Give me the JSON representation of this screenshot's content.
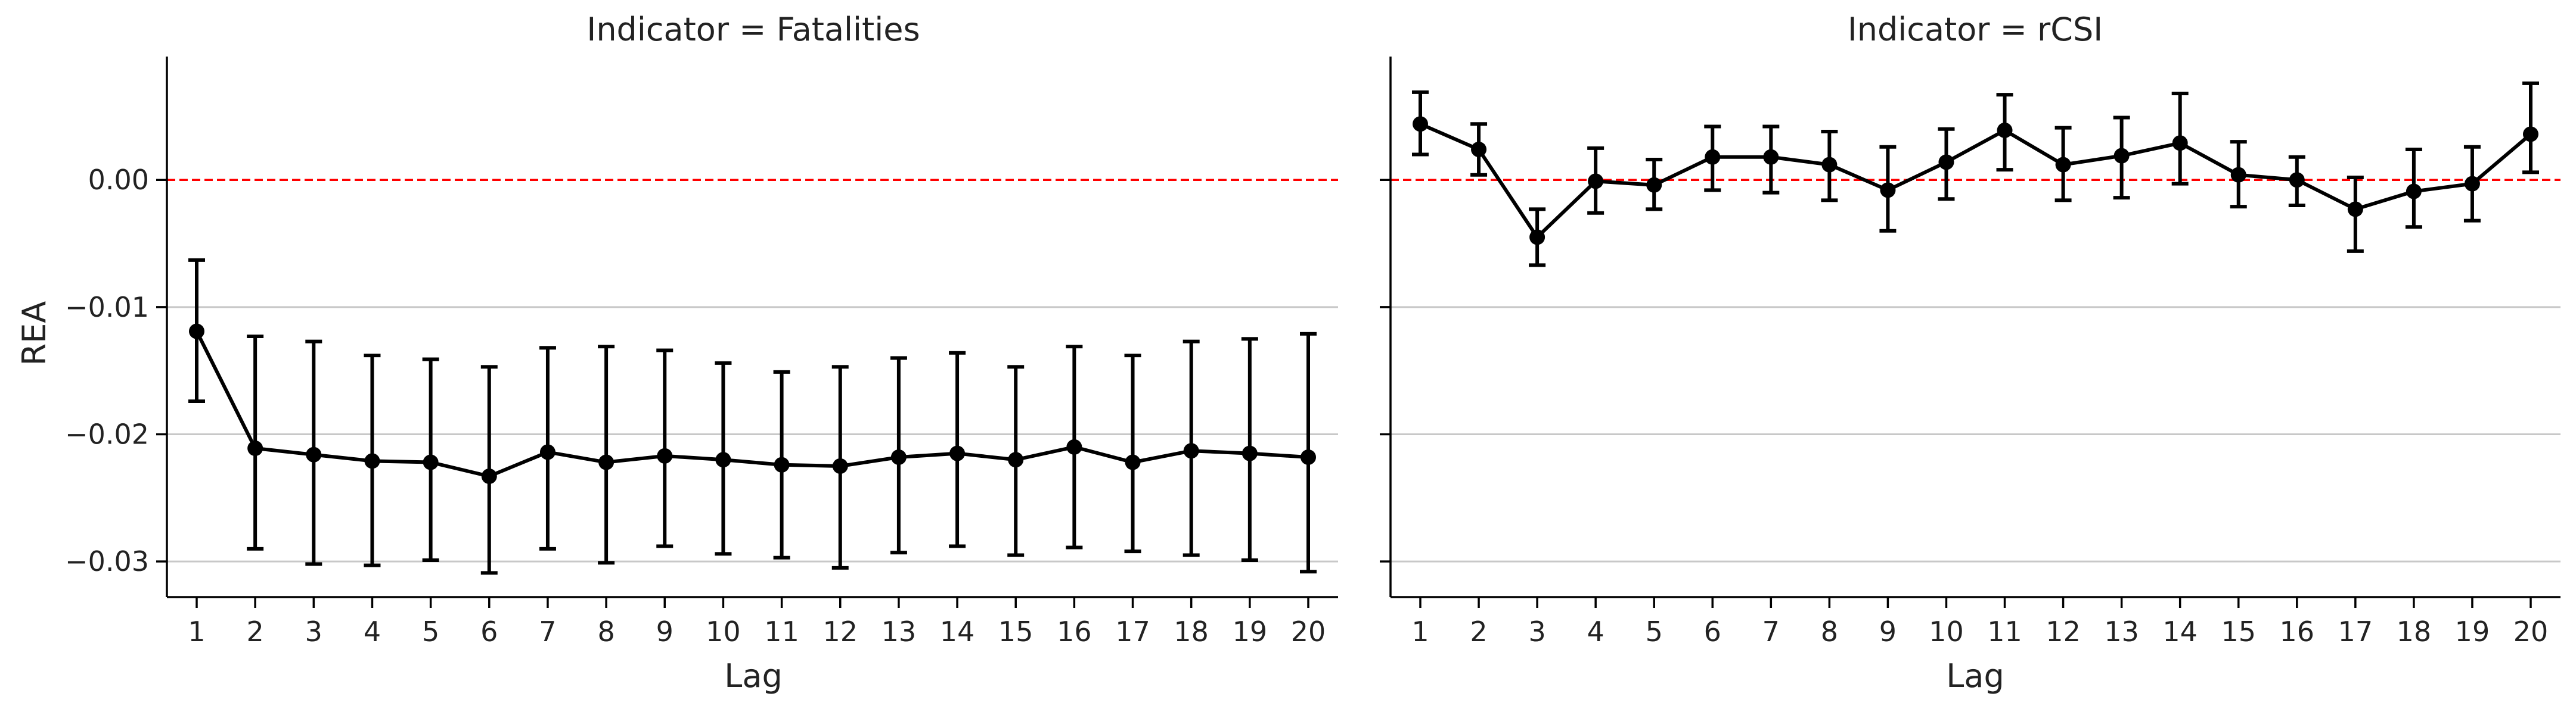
{
  "figure": {
    "ylabel": "REA",
    "y_ticks": [
      -0.03,
      -0.02,
      -0.01,
      0.0
    ],
    "y_tick_labels": [
      "−0.03",
      "−0.02",
      "−0.01",
      "0.00"
    ],
    "ylim": [
      -0.0328,
      0.0097
    ],
    "reference_line": {
      "y": 0,
      "color": "#ff0000",
      "style": "dashed"
    },
    "gridlines": "horizontal",
    "colors": {
      "series": "#000000",
      "grid": "#c8c8c8",
      "reference": "#ff0000"
    }
  },
  "chart_data": [
    {
      "type": "line",
      "title": "Indicator = Fatalities",
      "xlabel": "Lag",
      "ylabel": "REA",
      "x": [
        1,
        2,
        3,
        4,
        5,
        6,
        7,
        8,
        9,
        10,
        11,
        12,
        13,
        14,
        15,
        16,
        17,
        18,
        19,
        20
      ],
      "x_tick_labels": [
        "1",
        "2",
        "3",
        "4",
        "5",
        "6",
        "7",
        "8",
        "9",
        "10",
        "11",
        "12",
        "13",
        "14",
        "15",
        "16",
        "17",
        "18",
        "19",
        "20"
      ],
      "series": [
        {
          "values": [
            -0.0119,
            -0.0211,
            -0.0216,
            -0.0221,
            -0.0222,
            -0.0233,
            -0.0214,
            -0.0222,
            -0.0217,
            -0.022,
            -0.0224,
            -0.0225,
            -0.0218,
            -0.0215,
            -0.022,
            -0.021,
            -0.0222,
            -0.0213,
            -0.0215,
            -0.0218
          ],
          "lower": [
            -0.0174,
            -0.029,
            -0.0302,
            -0.0303,
            -0.0299,
            -0.0309,
            -0.029,
            -0.0301,
            -0.0288,
            -0.0294,
            -0.0297,
            -0.0305,
            -0.0293,
            -0.0288,
            -0.0295,
            -0.0289,
            -0.0292,
            -0.0295,
            -0.0299,
            -0.0308
          ],
          "upper": [
            -0.0063,
            -0.0123,
            -0.0127,
            -0.0138,
            -0.0141,
            -0.0147,
            -0.0132,
            -0.0131,
            -0.0134,
            -0.0144,
            -0.0151,
            -0.0147,
            -0.014,
            -0.0136,
            -0.0147,
            -0.0131,
            -0.0138,
            -0.0127,
            -0.0125,
            -0.0121
          ]
        }
      ]
    },
    {
      "type": "line",
      "title": "Indicator = rCSI",
      "xlabel": "Lag",
      "ylabel": "",
      "x": [
        1,
        2,
        3,
        4,
        5,
        6,
        7,
        8,
        9,
        10,
        11,
        12,
        13,
        14,
        15,
        16,
        17,
        18,
        19,
        20
      ],
      "x_tick_labels": [
        "1",
        "2",
        "3",
        "4",
        "5",
        "6",
        "7",
        "8",
        "9",
        "10",
        "11",
        "12",
        "13",
        "14",
        "15",
        "16",
        "17",
        "18",
        "19",
        "20"
      ],
      "series": [
        {
          "values": [
            0.0044,
            0.0024,
            -0.0045,
            -0.0001,
            -0.0004,
            0.0018,
            0.0018,
            0.0012,
            -0.0008,
            0.0014,
            0.0039,
            0.0012,
            0.0019,
            0.0029,
            0.0004,
            0.0,
            -0.0023,
            -0.0009,
            -0.0003,
            0.0036
          ],
          "lower": [
            0.002,
            0.0004,
            -0.0067,
            -0.0026,
            -0.0023,
            -0.0008,
            -0.001,
            -0.0016,
            -0.004,
            -0.0015,
            0.0008,
            -0.0016,
            -0.0014,
            -0.0003,
            -0.0021,
            -0.002,
            -0.0056,
            -0.0037,
            -0.0032,
            0.0006
          ],
          "upper": [
            0.0069,
            0.0044,
            -0.0023,
            0.0025,
            0.0016,
            0.0042,
            0.0042,
            0.0038,
            0.0026,
            0.004,
            0.0067,
            0.0041,
            0.0049,
            0.0068,
            0.003,
            0.0018,
            0.0002,
            0.0024,
            0.0026,
            0.0076
          ]
        }
      ]
    }
  ]
}
